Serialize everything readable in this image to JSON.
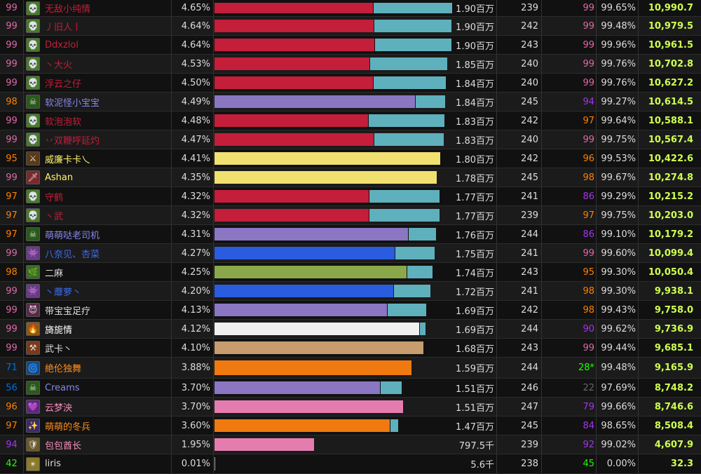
{
  "colors": {
    "rank_legendary": "#ff8000",
    "rank_epic": "#a335ee",
    "rank_rare": "#0070dd",
    "rank_uncommon": "#1eff00",
    "rank_common": "#666666",
    "rank_pink": "#e268a8",
    "dps_text": "#d0ff50"
  },
  "rows": [
    {
      "rank": "99",
      "rank_color": "#e268a8",
      "icon": "💀",
      "icon_bg": "#4a7a2a",
      "name": "无敌小纯情",
      "name_color": "#c41e3a",
      "pct": "4.65%",
      "bar_main": 0.656,
      "bar_main_color": "#c41e3a",
      "bar_extra": 0.328,
      "amount": "1.90百万",
      "ilvl": "239",
      "ilvl_pct": "99",
      "ilvl_pct_color": "#e268a8",
      "active": "99.65%",
      "dps": "10,990.7"
    },
    {
      "rank": "99",
      "rank_color": "#e268a8",
      "icon": "💀",
      "icon_bg": "#4a7a2a",
      "name": "丿旧人丨",
      "name_color": "#c41e3a",
      "pct": "4.64%",
      "bar_main": 0.659,
      "bar_main_color": "#c41e3a",
      "bar_extra": 0.322,
      "amount": "1.90百万",
      "ilvl": "242",
      "ilvl_pct": "99",
      "ilvl_pct_color": "#e268a8",
      "active": "99.48%",
      "dps": "10,979.5"
    },
    {
      "rank": "99",
      "rank_color": "#e268a8",
      "icon": "💀",
      "icon_bg": "#4a7a2a",
      "name": "Ddxzlol",
      "name_color": "#c41e3a",
      "pct": "4.64%",
      "bar_main": 0.662,
      "bar_main_color": "#c41e3a",
      "bar_extra": 0.318,
      "amount": "1.90百万",
      "ilvl": "243",
      "ilvl_pct": "99",
      "ilvl_pct_color": "#e268a8",
      "active": "99.96%",
      "dps": "10,961.5"
    },
    {
      "rank": "99",
      "rank_color": "#e268a8",
      "icon": "💀",
      "icon_bg": "#4a7a2a",
      "name": "丶大火",
      "name_color": "#c41e3a",
      "pct": "4.53%",
      "bar_main": 0.643,
      "bar_main_color": "#c41e3a",
      "bar_extra": 0.32,
      "amount": "1.85百万",
      "ilvl": "240",
      "ilvl_pct": "99",
      "ilvl_pct_color": "#e268a8",
      "active": "99.76%",
      "dps": "10,702.8"
    },
    {
      "rank": "99",
      "rank_color": "#e268a8",
      "icon": "💀",
      "icon_bg": "#4a7a2a",
      "name": "浮云之仔",
      "name_color": "#c41e3a",
      "pct": "4.50%",
      "bar_main": 0.656,
      "bar_main_color": "#c41e3a",
      "bar_extra": 0.3,
      "amount": "1.84百万",
      "ilvl": "240",
      "ilvl_pct": "99",
      "ilvl_pct_color": "#e268a8",
      "active": "99.76%",
      "dps": "10,627.2"
    },
    {
      "rank": "98",
      "rank_color": "#ff8000",
      "icon": "☠",
      "icon_bg": "#2a5a1a",
      "name": "软泥怪小宝宝",
      "name_color": "#8787ed",
      "pct": "4.49%",
      "bar_main": 0.831,
      "bar_main_color": "#8b76c4",
      "bar_extra": 0.122,
      "amount": "1.84百万",
      "ilvl": "245",
      "ilvl_pct": "94",
      "ilvl_pct_color": "#a335ee",
      "active": "99.27%",
      "dps": "10,614.5"
    },
    {
      "rank": "99",
      "rank_color": "#e268a8",
      "icon": "💀",
      "icon_bg": "#4a7a2a",
      "name": "软泡泡软",
      "name_color": "#c41e3a",
      "pct": "4.48%",
      "bar_main": 0.637,
      "bar_main_color": "#c41e3a",
      "bar_extra": 0.314,
      "amount": "1.83百万",
      "ilvl": "242",
      "ilvl_pct": "97",
      "ilvl_pct_color": "#ff8000",
      "active": "99.64%",
      "dps": "10,588.1"
    },
    {
      "rank": "99",
      "rank_color": "#e268a8",
      "icon": "💀",
      "icon_bg": "#4a7a2a",
      "name": "丷双鞭呼延灼",
      "name_color": "#c41e3a",
      "pct": "4.47%",
      "bar_main": 0.659,
      "bar_main_color": "#c41e3a",
      "bar_extra": 0.29,
      "amount": "1.83百万",
      "ilvl": "240",
      "ilvl_pct": "99",
      "ilvl_pct_color": "#e268a8",
      "active": "99.75%",
      "dps": "10,567.4"
    },
    {
      "rank": "95",
      "rank_color": "#ff8000",
      "icon": "⚔",
      "icon_bg": "#5a3a1a",
      "name": "威廉卡卡乀",
      "name_color": "#fff569",
      "pct": "4.41%",
      "bar_main": 0.936,
      "bar_main_color": "#f0e070",
      "bar_extra": 0.0,
      "amount": "1.80百万",
      "ilvl": "242",
      "ilvl_pct": "96",
      "ilvl_pct_color": "#ff8000",
      "active": "99.53%",
      "dps": "10,422.6"
    },
    {
      "rank": "99",
      "rank_color": "#e268a8",
      "icon": "🗡",
      "icon_bg": "#7a2a2a",
      "name": "Ashan",
      "name_color": "#fff569",
      "pct": "4.35%",
      "bar_main": 0.921,
      "bar_main_color": "#f0e070",
      "bar_extra": 0.0,
      "amount": "1.78百万",
      "ilvl": "245",
      "ilvl_pct": "98",
      "ilvl_pct_color": "#ff8000",
      "active": "99.67%",
      "dps": "10,274.8"
    },
    {
      "rank": "97",
      "rank_color": "#ff8000",
      "icon": "💀",
      "icon_bg": "#4a7a2a",
      "name": "守鹤",
      "name_color": "#c41e3a",
      "pct": "4.32%",
      "bar_main": 0.64,
      "bar_main_color": "#c41e3a",
      "bar_extra": 0.29,
      "amount": "1.77百万",
      "ilvl": "241",
      "ilvl_pct": "86",
      "ilvl_pct_color": "#a335ee",
      "active": "99.29%",
      "dps": "10,215.2"
    },
    {
      "rank": "97",
      "rank_color": "#ff8000",
      "icon": "💀",
      "icon_bg": "#4a7a2a",
      "name": "丶武",
      "name_color": "#c41e3a",
      "pct": "4.32%",
      "bar_main": 0.64,
      "bar_main_color": "#c41e3a",
      "bar_extra": 0.29,
      "amount": "1.77百万",
      "ilvl": "239",
      "ilvl_pct": "97",
      "ilvl_pct_color": "#ff8000",
      "active": "99.75%",
      "dps": "10,203.0"
    },
    {
      "rank": "97",
      "rank_color": "#ff8000",
      "icon": "☠",
      "icon_bg": "#2a5a1a",
      "name": "萌萌哒老司机",
      "name_color": "#8787ed",
      "pct": "4.31%",
      "bar_main": 0.802,
      "bar_main_color": "#8b76c4",
      "bar_extra": 0.113,
      "amount": "1.76百万",
      "ilvl": "244",
      "ilvl_pct": "86",
      "ilvl_pct_color": "#a335ee",
      "active": "99.10%",
      "dps": "10,179.2"
    },
    {
      "rank": "99",
      "rank_color": "#e268a8",
      "icon": "👾",
      "icon_bg": "#6a3a8a",
      "name": "八奈见、杏菜",
      "name_color": "#3e6cee",
      "pct": "4.27%",
      "bar_main": 0.747,
      "bar_main_color": "#2a5ce0",
      "bar_extra": 0.163,
      "amount": "1.75百万",
      "ilvl": "241",
      "ilvl_pct": "99",
      "ilvl_pct_color": "#e268a8",
      "active": "99.60%",
      "dps": "10,099.4"
    },
    {
      "rank": "98",
      "rank_color": "#ff8000",
      "icon": "🌿",
      "icon_bg": "#3a6a2a",
      "name": "二麻",
      "name_color": "#dddddd",
      "pct": "4.25%",
      "bar_main": 0.797,
      "bar_main_color": "#8aa84a",
      "bar_extra": 0.105,
      "amount": "1.74百万",
      "ilvl": "243",
      "ilvl_pct": "95",
      "ilvl_pct_color": "#ff8000",
      "active": "99.30%",
      "dps": "10,050.4"
    },
    {
      "rank": "99",
      "rank_color": "#e268a8",
      "icon": "👾",
      "icon_bg": "#6a3a8a",
      "name": "丶蘼萝丶",
      "name_color": "#3e6cee",
      "pct": "4.20%",
      "bar_main": 0.741,
      "bar_main_color": "#2a5ce0",
      "bar_extra": 0.151,
      "amount": "1.72百万",
      "ilvl": "241",
      "ilvl_pct": "98",
      "ilvl_pct_color": "#ff8000",
      "active": "99.30%",
      "dps": "9,938.1"
    },
    {
      "rank": "99",
      "rank_color": "#e268a8",
      "icon": "😈",
      "icon_bg": "#5a2a4a",
      "name": "带宝宝足疗",
      "name_color": "#dddddd",
      "pct": "4.13%",
      "bar_main": 0.715,
      "bar_main_color": "#8b76c4",
      "bar_extra": 0.16,
      "amount": "1.69百万",
      "ilvl": "242",
      "ilvl_pct": "98",
      "ilvl_pct_color": "#ff8000",
      "active": "99.43%",
      "dps": "9,758.0"
    },
    {
      "rank": "99",
      "rank_color": "#e268a8",
      "icon": "🔥",
      "icon_bg": "#8a5a1a",
      "name": "旖旎情",
      "name_color": "#ffffff",
      "pct": "4.12%",
      "bar_main": 0.849,
      "bar_main_color": "#f0f0f0",
      "bar_extra": 0.022,
      "amount": "1.69百万",
      "ilvl": "244",
      "ilvl_pct": "90",
      "ilvl_pct_color": "#a335ee",
      "active": "99.62%",
      "dps": "9,736.9"
    },
    {
      "rank": "99",
      "rank_color": "#e268a8",
      "icon": "⚒",
      "icon_bg": "#7a3a1a",
      "name": "武卡丶",
      "name_color": "#dddddd",
      "pct": "4.10%",
      "bar_main": 0.866,
      "bar_main_color": "#c79c6e",
      "bar_extra": 0.0,
      "amount": "1.68百万",
      "ilvl": "243",
      "ilvl_pct": "99",
      "ilvl_pct_color": "#e268a8",
      "active": "99.44%",
      "dps": "9,685.1"
    },
    {
      "rank": "71",
      "rank_color": "#0070dd",
      "icon": "🌀",
      "icon_bg": "#1a4a7a",
      "name": "絶伦独舞",
      "name_color": "#ff8c1a",
      "pct": "3.88%",
      "bar_main": 0.817,
      "bar_main_color": "#f07a10",
      "bar_extra": 0.0,
      "amount": "1.59百万",
      "ilvl": "244",
      "ilvl_pct": "28*",
      "ilvl_pct_color": "#1eff00",
      "active": "99.48%",
      "dps": "9,165.9"
    },
    {
      "rank": "56",
      "rank_color": "#0070dd",
      "icon": "☠",
      "icon_bg": "#2a5a1a",
      "name": "Creams",
      "name_color": "#8787ed",
      "pct": "3.70%",
      "bar_main": 0.686,
      "bar_main_color": "#8b76c4",
      "bar_extra": 0.087,
      "amount": "1.51百万",
      "ilvl": "246",
      "ilvl_pct": "22",
      "ilvl_pct_color": "#666666",
      "active": "97.69%",
      "dps": "8,748.2"
    },
    {
      "rank": "96",
      "rank_color": "#ff8000",
      "icon": "💜",
      "icon_bg": "#5a2a7a",
      "name": "云梦泱",
      "name_color": "#f58cba",
      "pct": "3.70%",
      "bar_main": 0.782,
      "bar_main_color": "#e57cb0",
      "bar_extra": 0.0,
      "amount": "1.51百万",
      "ilvl": "247",
      "ilvl_pct": "79",
      "ilvl_pct_color": "#a335ee",
      "active": "99.66%",
      "dps": "8,746.6"
    },
    {
      "rank": "97",
      "rank_color": "#ff8000",
      "icon": "✨",
      "icon_bg": "#3a2a6a",
      "name": "萌萌的冬兵",
      "name_color": "#ff8c1a",
      "pct": "3.60%",
      "bar_main": 0.727,
      "bar_main_color": "#f07a10",
      "bar_extra": 0.032,
      "amount": "1.47百万",
      "ilvl": "245",
      "ilvl_pct": "84",
      "ilvl_pct_color": "#a335ee",
      "active": "98.65%",
      "dps": "8,508.4"
    },
    {
      "rank": "94",
      "rank_color": "#a335ee",
      "icon": "🛡",
      "icon_bg": "#6a5a2a",
      "name": "包包酋长",
      "name_color": "#f58cba",
      "pct": "1.95%",
      "bar_main": 0.413,
      "bar_main_color": "#e57cb0",
      "bar_extra": 0.0,
      "amount": "797.5千",
      "ilvl": "239",
      "ilvl_pct": "92",
      "ilvl_pct_color": "#a335ee",
      "active": "99.02%",
      "dps": "4,607.9"
    },
    {
      "rank": "42",
      "rank_color": "#1eff00",
      "icon": "✴",
      "icon_bg": "#8a7a2a",
      "name": "liris",
      "name_color": "#dddddd",
      "pct": "0.01%",
      "bar_main": 0.003,
      "bar_main_color": "#aaaaaa",
      "bar_extra": 0.0,
      "amount": "5.6千",
      "ilvl": "238",
      "ilvl_pct": "45",
      "ilvl_pct_color": "#1eff00",
      "active": "0.00%",
      "dps": "32.3"
    }
  ]
}
